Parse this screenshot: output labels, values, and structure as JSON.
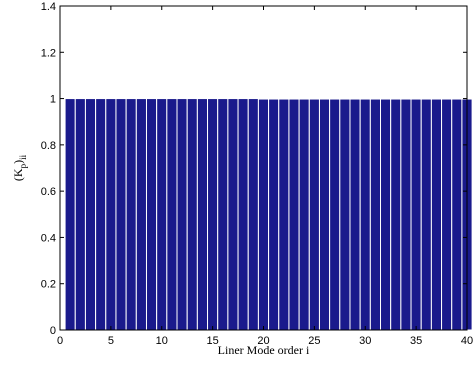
{
  "chart_data": {
    "type": "bar",
    "x": [
      1,
      2,
      3,
      4,
      5,
      6,
      7,
      8,
      9,
      10,
      11,
      12,
      13,
      14,
      15,
      16,
      17,
      18,
      19,
      20,
      21,
      22,
      23,
      24,
      25,
      26,
      27,
      28,
      29,
      30,
      31,
      32,
      33,
      34,
      35,
      36,
      37,
      38,
      39,
      40
    ],
    "values": [
      1.0,
      1.0,
      1.0,
      1.0,
      1.0,
      1.0,
      1.0,
      1.0,
      1.0,
      1.0,
      1.0,
      1.0,
      1.0,
      1.0,
      1.0,
      1.0,
      1.0,
      1.0,
      1.0,
      0.998,
      0.998,
      0.998,
      0.998,
      0.998,
      0.998,
      0.998,
      0.998,
      0.998,
      0.998,
      0.998,
      0.998,
      0.998,
      0.998,
      0.998,
      0.998,
      0.998,
      0.998,
      0.998,
      0.998,
      0.998
    ],
    "xlabel": "Liner Mode order i",
    "ylabel": {
      "main": "(K",
      "sub1": "p",
      "close": ")",
      "sub2": "ii"
    },
    "xlim": [
      0,
      40
    ],
    "ylim": [
      0,
      1.4
    ],
    "xticks": [
      "0",
      "5",
      "10",
      "15",
      "20",
      "25",
      "30",
      "35",
      "40"
    ],
    "yticks": [
      "0",
      "0.2",
      "0.4",
      "0.6",
      "0.8",
      "1",
      "1.2",
      "1.4"
    ],
    "grid": false,
    "bar_color": "#1a1a8c",
    "bar_edge_color": "#ffffff"
  }
}
